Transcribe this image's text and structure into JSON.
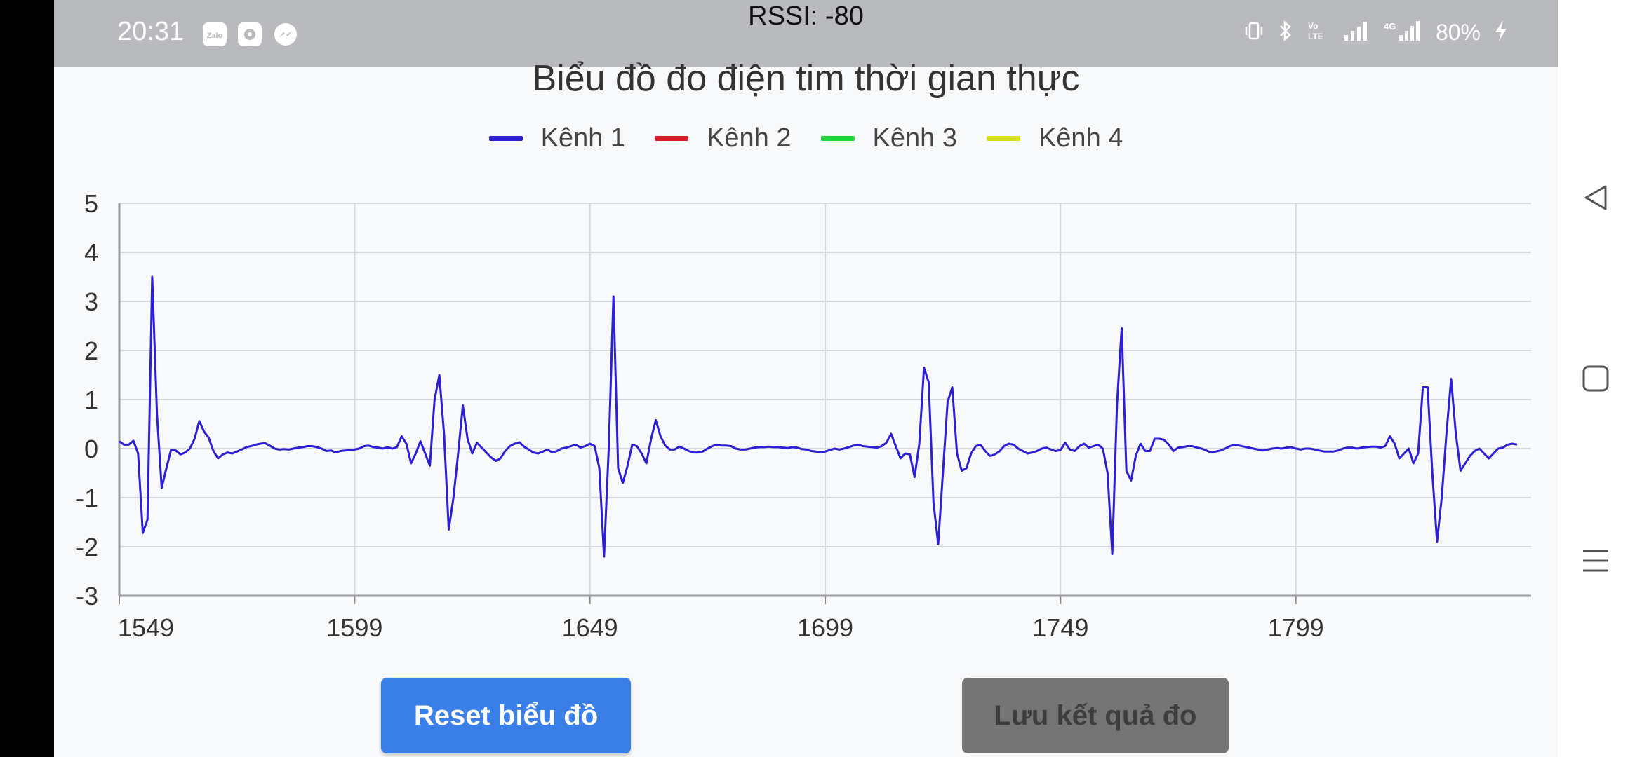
{
  "status_bar": {
    "time": "20:31",
    "rssi": "RSSI: -80",
    "battery": "80%",
    "app_icons": [
      "zalo-icon",
      "settings-icon",
      "messenger-icon"
    ],
    "indicator_icons": [
      "vibrate-icon",
      "bluetooth-icon",
      "volte-icon",
      "signal-icon",
      "4g-signal-icon",
      "charging-icon"
    ]
  },
  "chart_title": "Biểu đồ đo điện tim thời gian thực",
  "legend": [
    {
      "label": "Kênh 1",
      "color": "#2c1fd6"
    },
    {
      "label": "Kênh 2",
      "color": "#d9202a"
    },
    {
      "label": "Kênh 3",
      "color": "#22d63c"
    },
    {
      "label": "Kênh 4",
      "color": "#d6e01f"
    }
  ],
  "buttons": {
    "reset": "Reset biểu đồ",
    "save": "Lưu kết quả đo"
  },
  "chart_data": {
    "type": "line",
    "title": "Biểu đồ đo điện tim thời gian thực",
    "xlabel": "",
    "ylabel": "",
    "xlim": [
      1549,
      1849
    ],
    "ylim": [
      -3,
      5
    ],
    "x_ticks": [
      1549,
      1599,
      1649,
      1699,
      1749,
      1799
    ],
    "y_ticks": [
      5,
      4,
      3,
      2,
      1,
      0,
      -1,
      -2,
      -3
    ],
    "grid": true,
    "legend_position": "top-center",
    "series": [
      {
        "name": "Kênh 1",
        "color": "#2c1fd6",
        "points": [
          [
            1549,
            0.15
          ],
          [
            1550,
            0.08
          ],
          [
            1551,
            0.08
          ],
          [
            1552,
            0.16
          ],
          [
            1553,
            -0.1
          ],
          [
            1554,
            -1.72
          ],
          [
            1555,
            -1.45
          ],
          [
            1556,
            3.5
          ],
          [
            1557,
            0.7
          ],
          [
            1558,
            -0.8
          ],
          [
            1559,
            -0.4
          ],
          [
            1560,
            -0.02
          ],
          [
            1561,
            -0.04
          ],
          [
            1562,
            -0.12
          ],
          [
            1563,
            -0.08
          ],
          [
            1564,
            0.0
          ],
          [
            1565,
            0.2
          ],
          [
            1566,
            0.56
          ],
          [
            1567,
            0.35
          ],
          [
            1568,
            0.22
          ],
          [
            1569,
            -0.05
          ],
          [
            1570,
            -0.2
          ],
          [
            1571,
            -0.12
          ],
          [
            1572,
            -0.08
          ],
          [
            1573,
            -0.1
          ],
          [
            1574,
            -0.06
          ],
          [
            1575,
            -0.02
          ],
          [
            1576,
            0.03
          ],
          [
            1577,
            0.05
          ],
          [
            1578,
            0.08
          ],
          [
            1579,
            0.1
          ],
          [
            1580,
            0.11
          ],
          [
            1581,
            0.06
          ],
          [
            1582,
            0.0
          ],
          [
            1583,
            -0.02
          ],
          [
            1584,
            -0.01
          ],
          [
            1585,
            -0.02
          ],
          [
            1586,
            0.0
          ],
          [
            1587,
            0.02
          ],
          [
            1588,
            0.03
          ],
          [
            1589,
            0.05
          ],
          [
            1590,
            0.05
          ],
          [
            1591,
            0.03
          ],
          [
            1592,
            0.0
          ],
          [
            1593,
            -0.05
          ],
          [
            1594,
            -0.04
          ],
          [
            1595,
            -0.08
          ],
          [
            1596,
            -0.05
          ],
          [
            1597,
            -0.04
          ],
          [
            1598,
            -0.03
          ],
          [
            1599,
            -0.02
          ],
          [
            1600,
            0.0
          ],
          [
            1601,
            0.05
          ],
          [
            1602,
            0.06
          ],
          [
            1603,
            0.03
          ],
          [
            1604,
            0.02
          ],
          [
            1605,
            0.0
          ],
          [
            1606,
            0.03
          ],
          [
            1607,
            0.0
          ],
          [
            1608,
            0.03
          ],
          [
            1609,
            0.25
          ],
          [
            1610,
            0.1
          ],
          [
            1611,
            -0.3
          ],
          [
            1612,
            -0.1
          ],
          [
            1613,
            0.15
          ],
          [
            1614,
            -0.1
          ],
          [
            1615,
            -0.35
          ],
          [
            1616,
            1.0
          ],
          [
            1617,
            1.5
          ],
          [
            1618,
            0.3
          ],
          [
            1619,
            -1.65
          ],
          [
            1620,
            -1.0
          ],
          [
            1621,
            -0.1
          ],
          [
            1622,
            0.88
          ],
          [
            1623,
            0.2
          ],
          [
            1624,
            -0.1
          ],
          [
            1625,
            0.12
          ],
          [
            1626,
            0.02
          ],
          [
            1627,
            -0.08
          ],
          [
            1628,
            -0.18
          ],
          [
            1629,
            -0.25
          ],
          [
            1630,
            -0.2
          ],
          [
            1631,
            -0.05
          ],
          [
            1632,
            0.05
          ],
          [
            1633,
            0.1
          ],
          [
            1634,
            0.13
          ],
          [
            1635,
            0.04
          ],
          [
            1636,
            -0.02
          ],
          [
            1637,
            -0.08
          ],
          [
            1638,
            -0.1
          ],
          [
            1639,
            -0.06
          ],
          [
            1640,
            -0.02
          ],
          [
            1641,
            -0.08
          ],
          [
            1642,
            -0.05
          ],
          [
            1643,
            0.0
          ],
          [
            1644,
            0.02
          ],
          [
            1645,
            0.05
          ],
          [
            1646,
            0.08
          ],
          [
            1647,
            0.02
          ],
          [
            1648,
            0.05
          ],
          [
            1649,
            0.1
          ],
          [
            1650,
            0.05
          ],
          [
            1651,
            -0.4
          ],
          [
            1652,
            -2.2
          ],
          [
            1653,
            0.0
          ],
          [
            1654,
            3.1
          ],
          [
            1655,
            -0.4
          ],
          [
            1656,
            -0.7
          ],
          [
            1657,
            -0.35
          ],
          [
            1658,
            0.08
          ],
          [
            1659,
            0.05
          ],
          [
            1660,
            -0.1
          ],
          [
            1661,
            -0.3
          ],
          [
            1662,
            0.2
          ],
          [
            1663,
            0.58
          ],
          [
            1664,
            0.25
          ],
          [
            1665,
            0.06
          ],
          [
            1666,
            -0.02
          ],
          [
            1667,
            -0.02
          ],
          [
            1668,
            0.04
          ],
          [
            1669,
            0.0
          ],
          [
            1670,
            -0.05
          ],
          [
            1671,
            -0.08
          ],
          [
            1672,
            -0.08
          ],
          [
            1673,
            -0.06
          ],
          [
            1674,
            0.0
          ],
          [
            1675,
            0.05
          ],
          [
            1676,
            0.08
          ],
          [
            1677,
            0.06
          ],
          [
            1678,
            0.06
          ],
          [
            1679,
            0.05
          ],
          [
            1680,
            0.0
          ],
          [
            1681,
            -0.02
          ],
          [
            1682,
            -0.02
          ],
          [
            1683,
            0.0
          ],
          [
            1684,
            0.02
          ],
          [
            1685,
            0.03
          ],
          [
            1686,
            0.03
          ],
          [
            1687,
            0.04
          ],
          [
            1688,
            0.03
          ],
          [
            1689,
            0.03
          ],
          [
            1690,
            0.02
          ],
          [
            1691,
            0.01
          ],
          [
            1692,
            0.03
          ],
          [
            1693,
            0.02
          ],
          [
            1694,
            -0.01
          ],
          [
            1695,
            -0.02
          ],
          [
            1696,
            -0.05
          ],
          [
            1697,
            -0.06
          ],
          [
            1698,
            -0.08
          ],
          [
            1699,
            -0.06
          ],
          [
            1700,
            -0.03
          ],
          [
            1701,
            0.0
          ],
          [
            1702,
            -0.02
          ],
          [
            1703,
            0.0
          ],
          [
            1704,
            0.03
          ],
          [
            1705,
            0.06
          ],
          [
            1706,
            0.08
          ],
          [
            1707,
            0.05
          ],
          [
            1708,
            0.04
          ],
          [
            1709,
            0.03
          ],
          [
            1710,
            0.02
          ],
          [
            1711,
            0.05
          ],
          [
            1712,
            0.12
          ],
          [
            1713,
            0.3
          ],
          [
            1714,
            0.05
          ],
          [
            1715,
            -0.2
          ],
          [
            1716,
            -0.1
          ],
          [
            1717,
            -0.12
          ],
          [
            1718,
            -0.58
          ],
          [
            1719,
            0.1
          ],
          [
            1720,
            1.65
          ],
          [
            1721,
            1.35
          ],
          [
            1722,
            -1.1
          ],
          [
            1723,
            -1.95
          ],
          [
            1724,
            -0.5
          ],
          [
            1725,
            0.95
          ],
          [
            1726,
            1.25
          ],
          [
            1727,
            -0.1
          ],
          [
            1728,
            -0.45
          ],
          [
            1729,
            -0.4
          ],
          [
            1730,
            -0.1
          ],
          [
            1731,
            0.05
          ],
          [
            1732,
            0.08
          ],
          [
            1733,
            -0.05
          ],
          [
            1734,
            -0.15
          ],
          [
            1735,
            -0.12
          ],
          [
            1736,
            -0.06
          ],
          [
            1737,
            0.05
          ],
          [
            1738,
            0.1
          ],
          [
            1739,
            0.08
          ],
          [
            1740,
            0.0
          ],
          [
            1741,
            -0.05
          ],
          [
            1742,
            -0.1
          ],
          [
            1743,
            -0.08
          ],
          [
            1744,
            -0.05
          ],
          [
            1745,
            0.0
          ],
          [
            1746,
            0.02
          ],
          [
            1747,
            -0.02
          ],
          [
            1748,
            -0.05
          ],
          [
            1749,
            -0.03
          ],
          [
            1750,
            0.12
          ],
          [
            1751,
            -0.02
          ],
          [
            1752,
            -0.05
          ],
          [
            1753,
            0.05
          ],
          [
            1754,
            0.1
          ],
          [
            1755,
            0.02
          ],
          [
            1756,
            0.05
          ],
          [
            1757,
            0.08
          ],
          [
            1758,
            0.0
          ],
          [
            1759,
            -0.5
          ],
          [
            1760,
            -2.15
          ],
          [
            1761,
            0.9
          ],
          [
            1762,
            2.45
          ],
          [
            1763,
            -0.45
          ],
          [
            1764,
            -0.65
          ],
          [
            1765,
            -0.15
          ],
          [
            1766,
            0.1
          ],
          [
            1767,
            -0.05
          ],
          [
            1768,
            -0.05
          ],
          [
            1769,
            0.2
          ],
          [
            1770,
            0.2
          ],
          [
            1771,
            0.18
          ],
          [
            1772,
            0.08
          ],
          [
            1773,
            -0.05
          ],
          [
            1774,
            0.02
          ],
          [
            1775,
            0.03
          ],
          [
            1776,
            0.05
          ],
          [
            1777,
            0.05
          ],
          [
            1778,
            0.02
          ],
          [
            1779,
            0.0
          ],
          [
            1780,
            -0.04
          ],
          [
            1781,
            -0.08
          ],
          [
            1782,
            -0.06
          ],
          [
            1783,
            -0.04
          ],
          [
            1784,
            0.0
          ],
          [
            1785,
            0.05
          ],
          [
            1786,
            0.08
          ],
          [
            1787,
            0.06
          ],
          [
            1788,
            0.04
          ],
          [
            1789,
            0.02
          ],
          [
            1790,
            0.0
          ],
          [
            1791,
            -0.02
          ],
          [
            1792,
            -0.04
          ],
          [
            1793,
            -0.02
          ],
          [
            1794,
            0.0
          ],
          [
            1795,
            0.01
          ],
          [
            1796,
            0.0
          ],
          [
            1797,
            0.02
          ],
          [
            1798,
            0.03
          ],
          [
            1799,
            0.0
          ],
          [
            1800,
            -0.02
          ],
          [
            1801,
            0.0
          ],
          [
            1802,
            0.0
          ],
          [
            1803,
            -0.02
          ],
          [
            1804,
            -0.04
          ],
          [
            1805,
            -0.06
          ],
          [
            1806,
            -0.06
          ],
          [
            1807,
            -0.06
          ],
          [
            1808,
            -0.04
          ],
          [
            1809,
            0.0
          ],
          [
            1810,
            0.02
          ],
          [
            1811,
            0.02
          ],
          [
            1812,
            0.0
          ],
          [
            1813,
            0.02
          ],
          [
            1814,
            0.03
          ],
          [
            1815,
            0.04
          ],
          [
            1816,
            0.04
          ],
          [
            1817,
            0.02
          ],
          [
            1818,
            0.05
          ],
          [
            1819,
            0.25
          ],
          [
            1820,
            0.1
          ],
          [
            1821,
            -0.2
          ],
          [
            1822,
            -0.1
          ],
          [
            1823,
            0.0
          ],
          [
            1824,
            -0.3
          ],
          [
            1825,
            -0.1
          ],
          [
            1826,
            1.25
          ],
          [
            1827,
            1.25
          ],
          [
            1828,
            -0.5
          ],
          [
            1829,
            -1.9
          ],
          [
            1830,
            -1.0
          ],
          [
            1831,
            0.3
          ],
          [
            1832,
            1.42
          ],
          [
            1833,
            0.3
          ],
          [
            1834,
            -0.45
          ],
          [
            1835,
            -0.3
          ],
          [
            1836,
            -0.15
          ],
          [
            1837,
            -0.05
          ],
          [
            1838,
            0.0
          ],
          [
            1839,
            -0.1
          ],
          [
            1840,
            -0.2
          ],
          [
            1841,
            -0.1
          ],
          [
            1842,
            0.0
          ],
          [
            1843,
            0.02
          ],
          [
            1844,
            0.08
          ],
          [
            1845,
            0.1
          ],
          [
            1846,
            0.08
          ]
        ]
      },
      {
        "name": "Kênh 2",
        "color": "#d9202a",
        "points": []
      },
      {
        "name": "Kênh 3",
        "color": "#22d63c",
        "points": []
      },
      {
        "name": "Kênh 4",
        "color": "#d6e01f",
        "points": []
      }
    ]
  }
}
